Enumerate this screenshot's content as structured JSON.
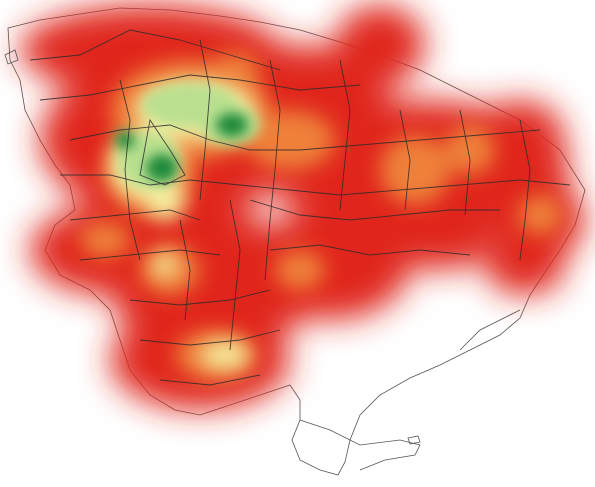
{
  "map": {
    "kind": "density-heatmap",
    "background": "#ffffff",
    "palette": {
      "low": "#e0261b",
      "mid_orange": "#f08a3c",
      "mid_yellow": "#f4eea0",
      "light_green": "#b9e08f",
      "high": "#1f8a3a"
    },
    "outline_color": "#2b2b2b",
    "labels": []
  }
}
